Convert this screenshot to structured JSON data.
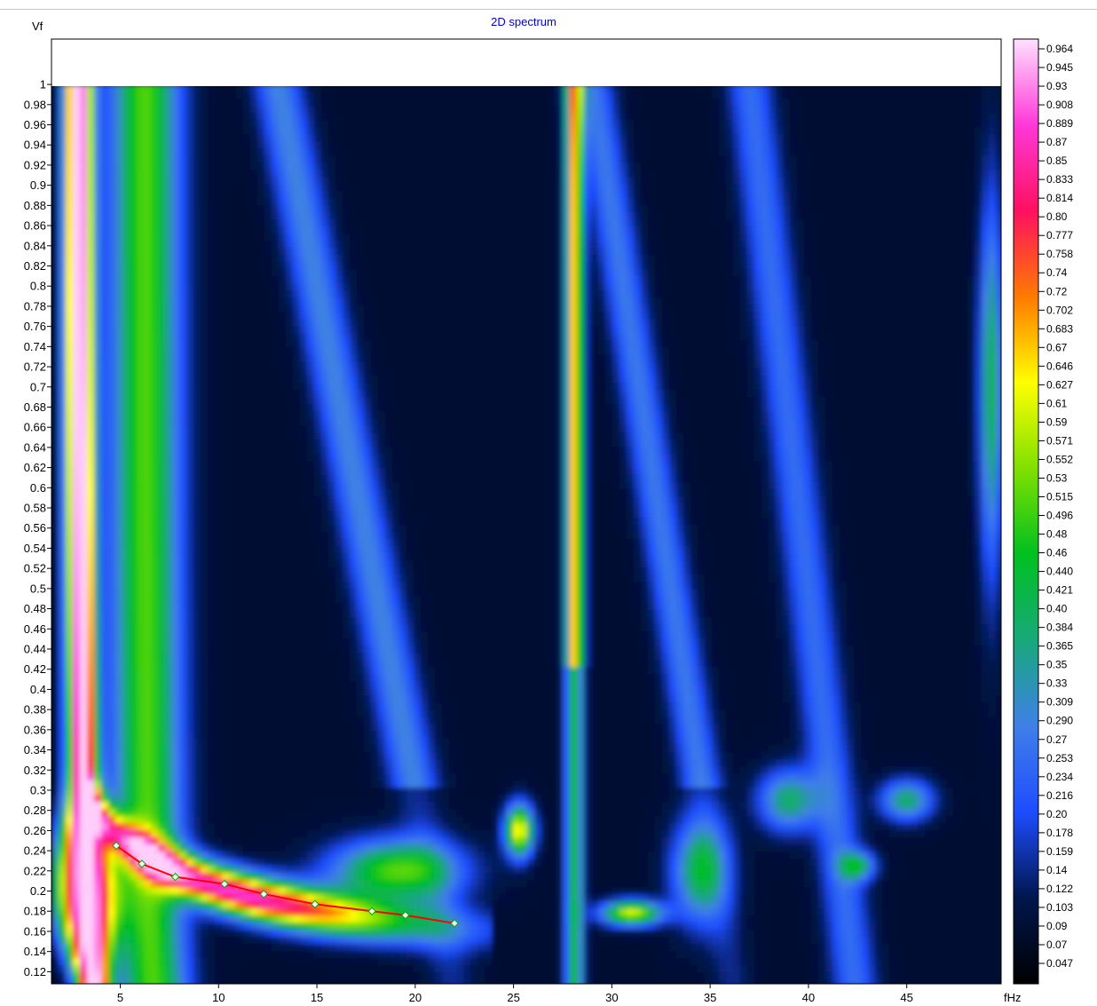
{
  "chart_data": {
    "type": "heatmap",
    "title": "2D spectrum",
    "xlabel": "fHz",
    "ylabel": "Vf",
    "xlim": [
      1.5,
      49.8
    ],
    "ylim": [
      0.108,
      1.045
    ],
    "x_ticks": [
      5,
      10,
      15,
      20,
      25,
      30,
      35,
      40,
      45
    ],
    "y_ticks": [
      0.12,
      0.14,
      0.16,
      0.18,
      0.2,
      0.22,
      0.24,
      0.26,
      0.28,
      0.3,
      0.32,
      0.34,
      0.36,
      0.38,
      0.4,
      0.42,
      0.44,
      0.46,
      0.48,
      0.5,
      0.52,
      0.54,
      0.56,
      0.58,
      0.6,
      0.62,
      0.64,
      0.66,
      0.68,
      0.7,
      0.72,
      0.74,
      0.76,
      0.78,
      0.8,
      0.82,
      0.84,
      0.86,
      0.88,
      0.9,
      0.92,
      0.94,
      0.96,
      0.98,
      1
    ],
    "data_ymax": 1,
    "colorbar": {
      "labels": [
        "0.964",
        "0.945",
        "0.93",
        "0.908",
        "0.889",
        "0.87",
        "0.85",
        "0.833",
        "0.814",
        "0.80",
        "0.777",
        "0.758",
        "0.74",
        "0.72",
        "0.702",
        "0.683",
        "0.67",
        "0.646",
        "0.627",
        "0.61",
        "0.59",
        "0.571",
        "0.552",
        "0.53",
        "0.515",
        "0.496",
        "0.48",
        "0.46",
        "0.440",
        "0.421",
        "0.40",
        "0.384",
        "0.365",
        "0.35",
        "0.33",
        "0.309",
        "0.290",
        "0.27",
        "0.253",
        "0.234",
        "0.216",
        "0.20",
        "0.178",
        "0.159",
        "0.14",
        "0.122",
        "0.103",
        "0.09",
        "0.07",
        "0.047"
      ],
      "colors": [
        "#000000",
        "#00164d",
        "#1e4dff",
        "#3f7fe8",
        "#18a97a",
        "#00c020",
        "#80e000",
        "#ffff00",
        "#ff7a00",
        "#ff1060",
        "#ff38d8",
        "#ffe0ff"
      ]
    },
    "series": [
      {
        "type": "line",
        "color": "#ff0000",
        "x": [
          4.8,
          6.1,
          7.8,
          10.3,
          12.3,
          14.9,
          17.8,
          19.5,
          22.0
        ],
        "y": [
          0.245,
          0.227,
          0.214,
          0.207,
          0.197,
          0.187,
          0.18,
          0.176,
          0.168
        ]
      }
    ]
  }
}
